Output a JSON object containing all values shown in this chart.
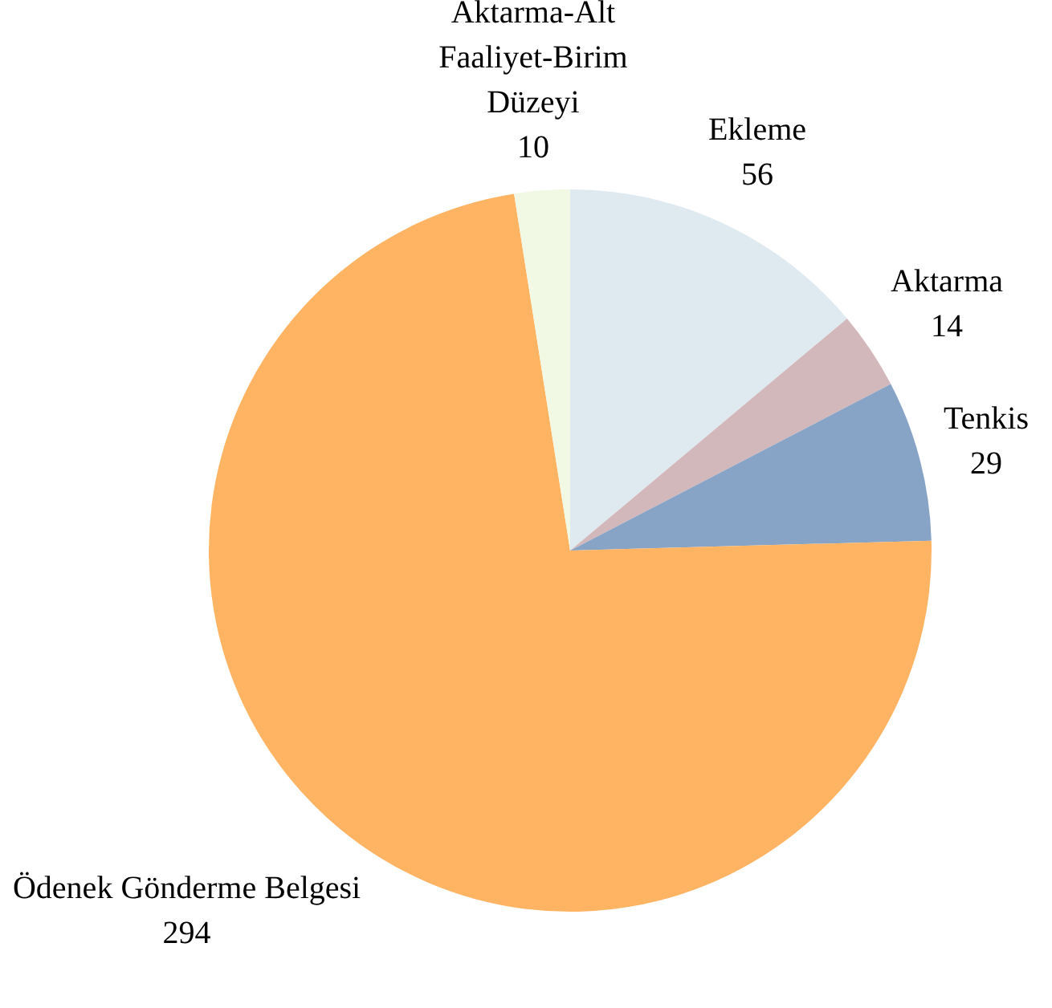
{
  "chart_data": {
    "type": "pie",
    "categories": [
      "Ekleme",
      "Aktarma",
      "Tenkis",
      "Ödenek Gönderme Belgesi",
      "Aktarma-Alt\nFaaliyet-Birim\nDüzeyi"
    ],
    "values": [
      56,
      14,
      29,
      294,
      10
    ],
    "colors": [
      "#dfe9f0",
      "#d3b8bb",
      "#87a3c5",
      "#ffb464",
      "#f1f8e3"
    ],
    "data_labels": true,
    "legend": false
  }
}
